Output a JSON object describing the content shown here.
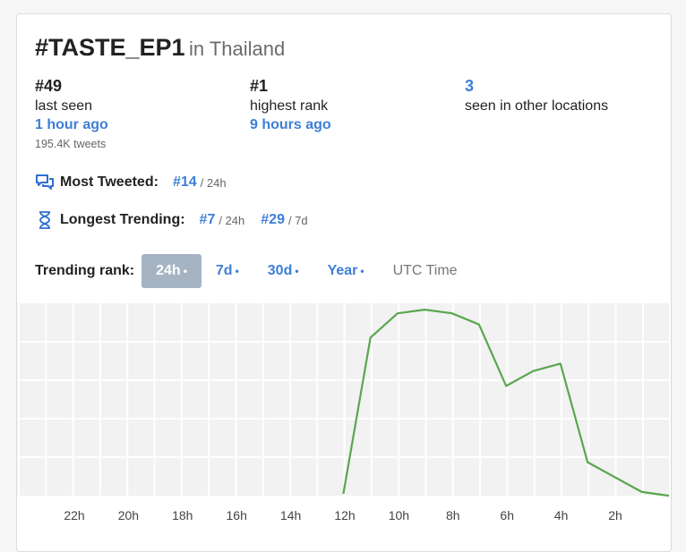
{
  "header": {
    "hashtag": "#TASTE_EP1",
    "location": "in Thailand"
  },
  "stats": [
    {
      "value": "#49",
      "label": "last seen",
      "time": "1 hour ago",
      "extra": "195.4K tweets"
    },
    {
      "value": "#1",
      "label": "highest rank",
      "time": "9 hours ago"
    },
    {
      "value": "3",
      "label": "seen in other locations"
    }
  ],
  "most_tweeted": {
    "label": "Most Tweeted:",
    "rank": "#14",
    "period": "/ 24h",
    "icon": "chat-bubbles-icon"
  },
  "longest_trending": {
    "label": "Longest Trending:",
    "rank1": "#7",
    "period1": "/ 24h",
    "rank2": "#29",
    "period2": "/ 7d",
    "icon": "hourglass-icon"
  },
  "trending_rank": {
    "label": "Trending rank:",
    "tabs": [
      "24h",
      "7d",
      "30d",
      "Year"
    ],
    "active": "24h",
    "utc_label": "UTC Time"
  },
  "chart_data": {
    "type": "line",
    "x_ticks": [
      "22h",
      "20h",
      "18h",
      "16h",
      "14h",
      "12h",
      "10h",
      "8h",
      "6h",
      "4h",
      "2h"
    ],
    "hours_ago": [
      12,
      11,
      10,
      9,
      8,
      7,
      6,
      5,
      4,
      3,
      2,
      1,
      0
    ],
    "relative_level": [
      0.0,
      0.84,
      0.97,
      0.99,
      0.97,
      0.91,
      0.58,
      0.66,
      0.7,
      0.17,
      0.09,
      0.01,
      -0.01
    ],
    "color": "#5aa64f",
    "grid": true
  }
}
